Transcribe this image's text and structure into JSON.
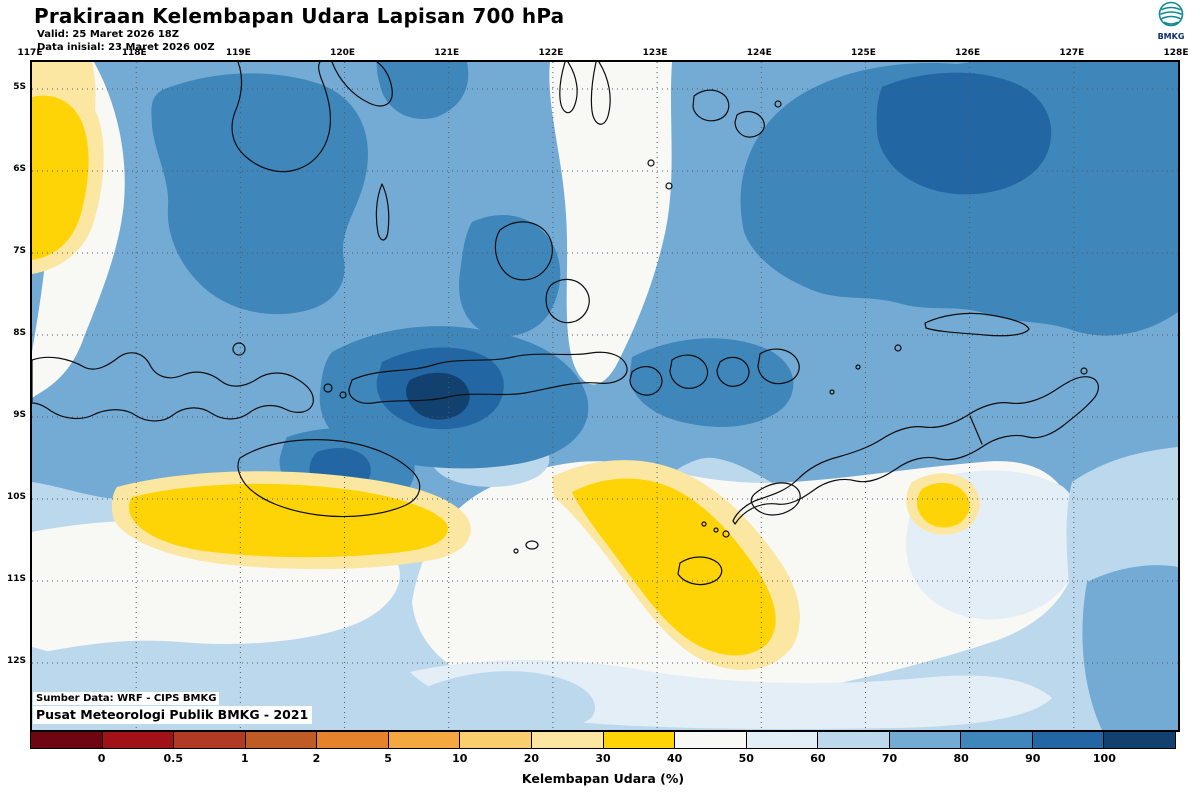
{
  "header": {
    "title": "Prakiraan Kelembapan Udara Lapisan 700 hPa",
    "valid_line": "Valid: 25 Maret 2026 18Z",
    "init_line": "Data inisial: 23 Maret 2026 00Z",
    "logo_text": "BMKG"
  },
  "map": {
    "lon_labels": [
      "117E",
      "118E",
      "119E",
      "120E",
      "121E",
      "122E",
      "123E",
      "124E",
      "125E",
      "126E",
      "127E",
      "128E"
    ],
    "lat_labels": [
      "5S",
      "6S",
      "7S",
      "8S",
      "9S",
      "10S",
      "11S",
      "12S"
    ],
    "source_line1": "Sumber Data: WRF - CIPS BMKG",
    "source_line2": "Pusat Meteorologi Publik BMKG - 2021"
  },
  "legend": {
    "label": "Kelembapan Udara (%)",
    "ticks": [
      "0",
      "0.5",
      "1",
      "2",
      "5",
      "10",
      "20",
      "30",
      "40",
      "50",
      "60",
      "70",
      "80",
      "90",
      "100"
    ],
    "colors": [
      "#6e0611",
      "#a11218",
      "#b03a24",
      "#bf5b25",
      "#e6822c",
      "#f5a83f",
      "#fbce6d",
      "#fbe7a1",
      "#ffd407",
      "#f8f8f5",
      "#e4eef6",
      "#bcd8ec",
      "#74abd4",
      "#3f86ba",
      "#2266a4",
      "#12416f"
    ]
  },
  "palette": {
    "yellow": "#ffd407",
    "pale_yellow": "#fbe7a1",
    "white": "#f8f8f5",
    "blue_50": "#e4eef6",
    "blue_60": "#bcd8ec",
    "blue_70": "#74abd4",
    "blue_80": "#3f86ba",
    "blue_90": "#2266a4",
    "blue_100": "#12416f",
    "coast": "#0e0e0e",
    "grid": "#55595e"
  }
}
